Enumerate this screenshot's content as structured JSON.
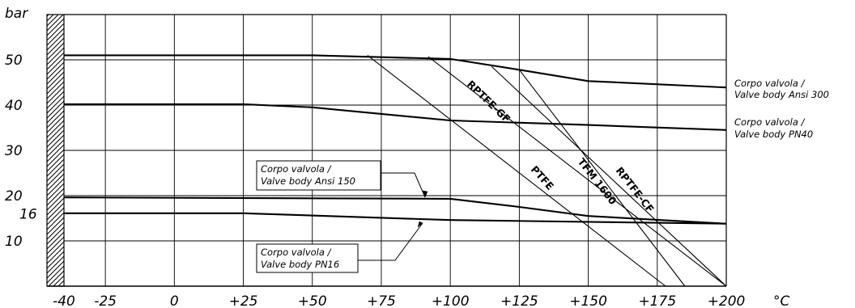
{
  "chart_data": {
    "type": "line",
    "x_unit": "°C",
    "y_unit": "bar",
    "xlim": [
      -40,
      200
    ],
    "ylim": [
      0,
      55
    ],
    "x_ticks": [
      "-40",
      "-25",
      "0",
      "+25",
      "+50",
      "+75",
      "+100",
      "+125",
      "+150",
      "+175",
      "+200"
    ],
    "y_ticks": [
      {
        "label": "50",
        "value": 50
      },
      {
        "label": "40",
        "value": 40
      },
      {
        "label": "30",
        "value": 30
      },
      {
        "label": "20",
        "value": 20
      },
      {
        "label": "16",
        "value": 16
      },
      {
        "label": "10",
        "value": 10
      }
    ],
    "grid": true,
    "series": [
      {
        "name": "Corpo valvola / Valve body Ansi 300",
        "kind": "body",
        "points": [
          [
            -40,
            51
          ],
          [
            50,
            51
          ],
          [
            100,
            50.2
          ],
          [
            125,
            47.8
          ],
          [
            150,
            45.3
          ],
          [
            200,
            43.9
          ]
        ]
      },
      {
        "name": "Corpo valvola / Valve body PN40",
        "kind": "body",
        "points": [
          [
            -40,
            40.2
          ],
          [
            25,
            40.2
          ],
          [
            50,
            39.5
          ],
          [
            100,
            36.6
          ],
          [
            150,
            35.6
          ],
          [
            200,
            34.5
          ]
        ]
      },
      {
        "name": "Corpo valvola / Valve body Ansi 150",
        "kind": "body",
        "points": [
          [
            -40,
            19.6
          ],
          [
            100,
            19.3
          ],
          [
            125,
            17.5
          ],
          [
            150,
            15.5
          ],
          [
            200,
            13.8
          ]
        ]
      },
      {
        "name": "Corpo valvola / Valve body PN16",
        "kind": "body",
        "points": [
          [
            -40,
            16.1
          ],
          [
            25,
            16.1
          ],
          [
            100,
            14.6
          ],
          [
            200,
            13.8
          ]
        ]
      },
      {
        "name": "PTFE",
        "kind": "seat",
        "points": [
          [
            70,
            51
          ],
          [
            178,
            0
          ]
        ]
      },
      {
        "name": "RPTFE-GF",
        "kind": "seat",
        "points": [
          [
            92,
            50.7
          ],
          [
            200,
            0
          ]
        ]
      },
      {
        "name": "TFM 1600",
        "kind": "seat",
        "points": [
          [
            115,
            48.5
          ],
          [
            200,
            0
          ]
        ]
      },
      {
        "name": "RPTFE-CF",
        "kind": "seat",
        "points": [
          [
            125,
            47.8
          ],
          [
            185,
            0
          ]
        ]
      }
    ],
    "annotations": {
      "ansi300": {
        "line1": "Corpo valvola /",
        "line2": "Valve body Ansi 300"
      },
      "pn40": {
        "line1": "Corpo valvola /",
        "line2": "Valve body PN40"
      },
      "ansi150": {
        "line1": "Corpo valvola /",
        "line2": "Valve body Ansi 150"
      },
      "pn16": {
        "line1": "Corpo valvola /",
        "line2": "Valve body PN16"
      },
      "rptfe_gf": "RPTFE-GF",
      "ptfe": "PTFE",
      "tfm": "TFM 1600",
      "rptfe_cf": "RPTFE-CF"
    }
  }
}
